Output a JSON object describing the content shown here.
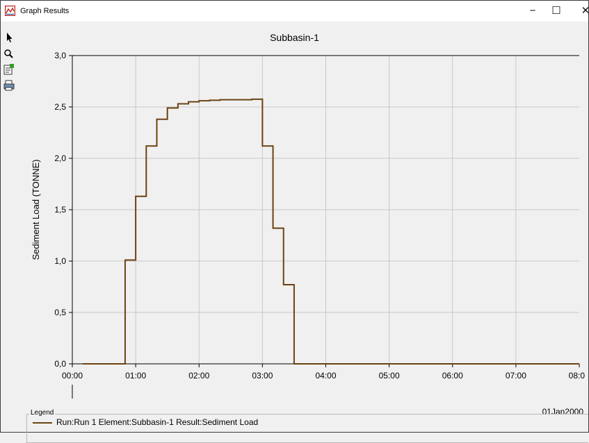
{
  "window": {
    "title": "Graph Results",
    "minimize_glyph": "−",
    "maximize_glyph": "☐",
    "close_glyph": "✕"
  },
  "toolbar": {
    "items": [
      {
        "icon": "pointer-arrow-icon"
      },
      {
        "icon": "zoom-icon"
      },
      {
        "icon": "properties-icon"
      },
      {
        "icon": "print-icon"
      }
    ]
  },
  "colors": {
    "series": "#6b4211",
    "grid": "#c8c8c8",
    "background": "#f0f0f0"
  },
  "chart_data": {
    "type": "line",
    "title": "Subbasin-1",
    "xlabel": "",
    "ylabel": "Sediment Load (TONNE)",
    "date_label": "01Jan2000",
    "xlim": [
      "00:00",
      "08:00"
    ],
    "ylim": [
      0,
      3.0
    ],
    "grid": true,
    "legend_position": "bottom",
    "legend_title": "Legend",
    "x_ticks": [
      "00:00",
      "01:00",
      "02:00",
      "03:00",
      "04:00",
      "05:00",
      "06:00",
      "07:00",
      "08:0"
    ],
    "y_ticks": [
      "0,0",
      "0,5",
      "1,0",
      "1,5",
      "2,0",
      "2,5",
      "3,0"
    ],
    "step": "post",
    "series": [
      {
        "name": "Run:Run 1 Element:Subbasin-1 Result:Sediment Load",
        "x": [
          "00:10",
          "00:50",
          "01:00",
          "01:10",
          "01:20",
          "01:30",
          "01:40",
          "01:50",
          "02:00",
          "02:10",
          "02:20",
          "02:30",
          "02:40",
          "02:50",
          "03:00",
          "03:10",
          "03:20",
          "03:30",
          "08:00"
        ],
        "y": [
          0,
          1.01,
          1.63,
          2.12,
          2.38,
          2.49,
          2.53,
          2.55,
          2.56,
          2.565,
          2.57,
          2.57,
          2.57,
          2.575,
          2.12,
          1.32,
          0.77,
          0,
          0
        ]
      }
    ]
  }
}
